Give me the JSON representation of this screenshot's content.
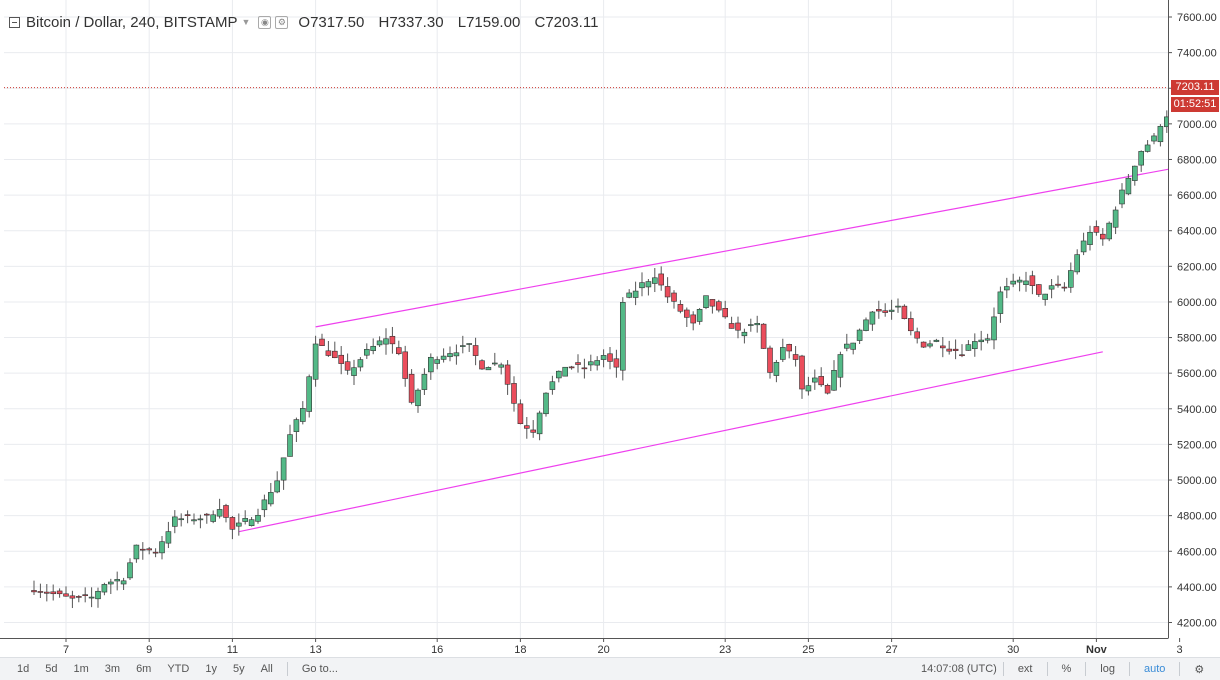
{
  "header": {
    "symbol": "Bitcoin / Dollar, 240, BITSTAMP",
    "ohlc": [
      {
        "key": "O",
        "value": "7317.50"
      },
      {
        "key": "H",
        "value": "7337.30"
      },
      {
        "key": "L",
        "value": "7159.00"
      },
      {
        "key": "C",
        "value": "7203.11"
      }
    ]
  },
  "price_badge": "7203.11",
  "countdown_badge": "01:52:51",
  "bottom_bar": {
    "ranges": [
      "1d",
      "5d",
      "1m",
      "3m",
      "6m",
      "YTD",
      "1y",
      "5y",
      "All"
    ],
    "goto": "Go to...",
    "time": "14:07:08 (UTC)",
    "ext": "ext",
    "percent": "%",
    "log": "log",
    "auto": "auto"
  },
  "colors": {
    "up": "#53b987",
    "down": "#eb4d5c",
    "channel": "#ee40ee",
    "last_price": "#cd3a33",
    "grid": "#e9ebef"
  },
  "chart_data": {
    "type": "candlestick",
    "title": "Bitcoin / Dollar, 240, BITSTAMP",
    "ylim": [
      4150,
      7700
    ],
    "y_ticks": [
      4200,
      4400,
      4600,
      4800,
      5000,
      5200,
      5400,
      5600,
      5800,
      6000,
      6200,
      6400,
      6600,
      6800,
      7000,
      7200,
      7400,
      7600
    ],
    "x_ticks": [
      {
        "label": "7",
        "bar": 5
      },
      {
        "label": "9",
        "bar": 18
      },
      {
        "label": "11",
        "bar": 31
      },
      {
        "label": "13",
        "bar": 44
      },
      {
        "label": "16",
        "bar": 63
      },
      {
        "label": "18",
        "bar": 76
      },
      {
        "label": "20",
        "bar": 89
      },
      {
        "label": "23",
        "bar": 108
      },
      {
        "label": "25",
        "bar": 121
      },
      {
        "label": "27",
        "bar": 134
      },
      {
        "label": "30",
        "bar": 153
      },
      {
        "label": "Nov",
        "bar": 166
      },
      {
        "label": "3",
        "bar": 179
      }
    ],
    "bar_count": 183,
    "anchor_closes": [
      [
        0,
        4390
      ],
      [
        6,
        4330
      ],
      [
        9,
        4340
      ],
      [
        11,
        4420
      ],
      [
        14,
        4450
      ],
      [
        16,
        4620
      ],
      [
        19,
        4600
      ],
      [
        22,
        4780
      ],
      [
        27,
        4790
      ],
      [
        29,
        4850
      ],
      [
        31,
        4720
      ],
      [
        35,
        4820
      ],
      [
        38,
        5000
      ],
      [
        40,
        5250
      ],
      [
        42,
        5400
      ],
      [
        44,
        5780
      ],
      [
        47,
        5680
      ],
      [
        49,
        5600
      ],
      [
        52,
        5720
      ],
      [
        55,
        5800
      ],
      [
        57,
        5720
      ],
      [
        59,
        5420
      ],
      [
        62,
        5680
      ],
      [
        65,
        5720
      ],
      [
        68,
        5750
      ],
      [
        70,
        5640
      ],
      [
        73,
        5660
      ],
      [
        76,
        5320
      ],
      [
        78,
        5280
      ],
      [
        80,
        5500
      ],
      [
        83,
        5640
      ],
      [
        86,
        5630
      ],
      [
        89,
        5700
      ],
      [
        91,
        5620
      ],
      [
        92,
        6000
      ],
      [
        95,
        6100
      ],
      [
        97,
        6150
      ],
      [
        99,
        6030
      ],
      [
        101,
        5950
      ],
      [
        103,
        5870
      ],
      [
        105,
        6020
      ],
      [
        108,
        5900
      ],
      [
        110,
        5830
      ],
      [
        113,
        5870
      ],
      [
        115,
        5600
      ],
      [
        117,
        5740
      ],
      [
        119,
        5680
      ],
      [
        120,
        5500
      ],
      [
        122,
        5560
      ],
      [
        124,
        5480
      ],
      [
        126,
        5720
      ],
      [
        128,
        5780
      ],
      [
        131,
        5960
      ],
      [
        133,
        5940
      ],
      [
        135,
        5960
      ],
      [
        137,
        5830
      ],
      [
        139,
        5760
      ],
      [
        141,
        5780
      ],
      [
        143,
        5740
      ],
      [
        145,
        5720
      ],
      [
        147,
        5790
      ],
      [
        149,
        5800
      ],
      [
        151,
        6050
      ],
      [
        153,
        6100
      ],
      [
        155,
        6130
      ],
      [
        157,
        6030
      ],
      [
        159,
        6080
      ],
      [
        161,
        6080
      ],
      [
        163,
        6270
      ],
      [
        165,
        6400
      ],
      [
        167,
        6350
      ],
      [
        169,
        6530
      ],
      [
        171,
        6700
      ],
      [
        173,
        6850
      ],
      [
        175,
        6920
      ],
      [
        176,
        7000
      ],
      [
        177,
        7050
      ],
      [
        178,
        7200
      ],
      [
        179,
        7330
      ],
      [
        180,
        7317.5
      ],
      [
        181,
        7203.11
      ]
    ],
    "last_bar": {
      "open": 7317.5,
      "high": 7337.3,
      "low": 7159.0,
      "close": 7203.11
    },
    "last_price": 7203.11,
    "channel_lines": [
      {
        "from": {
          "bar": 44,
          "price": 5860
        },
        "to": {
          "bar": 181,
          "price": 6770
        }
      },
      {
        "from": {
          "bar": 32,
          "price": 4710
        },
        "to": {
          "bar": 167,
          "price": 5720
        }
      }
    ],
    "grid": true
  }
}
